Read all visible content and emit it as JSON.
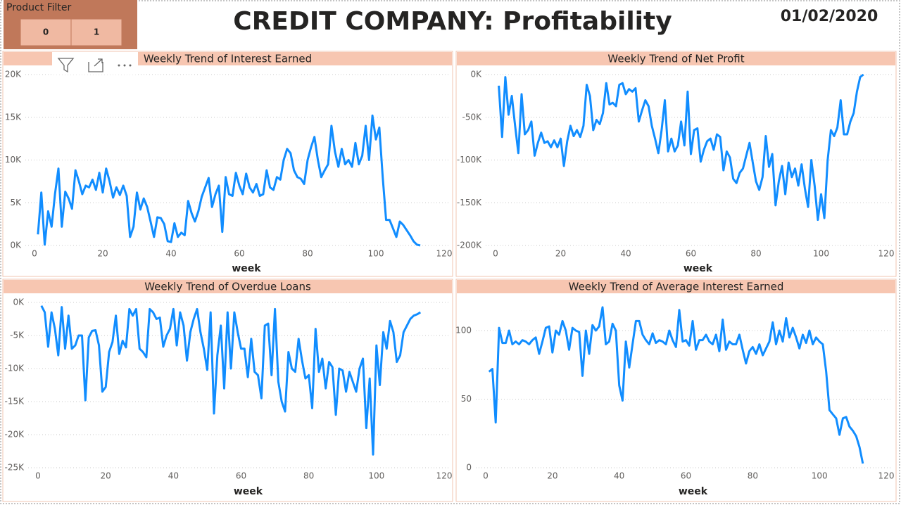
{
  "header": {
    "title": "CREDIT COMPANY: Profitability",
    "date": "01/02/2020"
  },
  "filter": {
    "label": "Product Filter",
    "options": [
      "0",
      "1"
    ]
  },
  "chart_data": [
    {
      "type": "line",
      "title": "Weekly Trend of Interest Earned",
      "xlabel": "week",
      "color": "#118dff",
      "grid": true,
      "xlim": [
        0,
        120
      ],
      "xticks": [
        0,
        20,
        40,
        60,
        80,
        100,
        120
      ],
      "ylim": [
        0,
        20000
      ],
      "yticks": [
        {
          "value": 0,
          "label": "0K"
        },
        {
          "value": 5000,
          "label": "5K"
        },
        {
          "value": 10000,
          "label": "10K"
        },
        {
          "value": 15000,
          "label": "15K"
        },
        {
          "value": 20000,
          "label": "20K"
        }
      ],
      "x": [
        1,
        2,
        3,
        4,
        5,
        6,
        7,
        8,
        9,
        10,
        11,
        12,
        13,
        14,
        15,
        16,
        17,
        18,
        19,
        20,
        21,
        22,
        23,
        24,
        25,
        26,
        27,
        28,
        29,
        30,
        31,
        32,
        33,
        34,
        35,
        36,
        37,
        38,
        39,
        40,
        41,
        42,
        43,
        44,
        45,
        46,
        47,
        48,
        49,
        50,
        51,
        52,
        53,
        54,
        55,
        56,
        57,
        58,
        59,
        60,
        61,
        62,
        63,
        64,
        65,
        66,
        67,
        68,
        69,
        70,
        71,
        72,
        73,
        74,
        75,
        76,
        77,
        78,
        79,
        80,
        81,
        82,
        83,
        84,
        85,
        86,
        87,
        88,
        89,
        90,
        91,
        92,
        93,
        94,
        95,
        96,
        97,
        98,
        99,
        100,
        101,
        102,
        103,
        104,
        105,
        106,
        107,
        108,
        109,
        110,
        111,
        112,
        113
      ],
      "values": [
        1300,
        6200,
        100,
        4000,
        2200,
        6000,
        9000,
        2200,
        6300,
        5500,
        4300,
        8800,
        7500,
        6000,
        7000,
        6800,
        7700,
        6500,
        8500,
        6200,
        9000,
        7500,
        5600,
        6800,
        5900,
        7000,
        5800,
        1000,
        2200,
        6200,
        4200,
        5500,
        4500,
        2800,
        1000,
        3300,
        3200,
        2500,
        500,
        400,
        2600,
        1000,
        1500,
        1200,
        5200,
        3800,
        2800,
        4000,
        5700,
        6800,
        7900,
        4500,
        6000,
        7000,
        1600,
        8000,
        6000,
        5800,
        8500,
        7000,
        6000,
        8400,
        6800,
        6200,
        7200,
        5800,
        6000,
        8800,
        6800,
        6500,
        8000,
        7700,
        10000,
        11300,
        10800,
        8800,
        8000,
        7800,
        7200,
        10000,
        11500,
        12700,
        10000,
        8000,
        8800,
        9500,
        14000,
        11000,
        9200,
        11300,
        9500,
        10000,
        9200,
        12000,
        9500,
        10500,
        14000,
        10000,
        15200,
        12400,
        13800,
        8000,
        3000,
        3000,
        2000,
        1000,
        2800,
        2400,
        1800,
        1200,
        500,
        100,
        0
      ]
    },
    {
      "type": "line",
      "title": "Weekly Trend of Net Profit",
      "xlabel": "week",
      "color": "#118dff",
      "grid": true,
      "xlim": [
        0,
        120
      ],
      "xticks": [
        0,
        20,
        40,
        60,
        80,
        100,
        120
      ],
      "ylim": [
        -200000,
        0
      ],
      "yticks": [
        {
          "value": -200000,
          "label": "-200K"
        },
        {
          "value": -150000,
          "label": "-150K"
        },
        {
          "value": -100000,
          "label": "-100K"
        },
        {
          "value": -50000,
          "label": "-50K"
        },
        {
          "value": 0,
          "label": "0K"
        }
      ],
      "x": [
        1,
        2,
        3,
        4,
        5,
        6,
        7,
        8,
        9,
        10,
        11,
        12,
        13,
        14,
        15,
        16,
        17,
        18,
        19,
        20,
        21,
        22,
        23,
        24,
        25,
        26,
        27,
        28,
        29,
        30,
        31,
        32,
        33,
        34,
        35,
        36,
        37,
        38,
        39,
        40,
        41,
        42,
        43,
        44,
        45,
        46,
        47,
        48,
        49,
        50,
        51,
        52,
        53,
        54,
        55,
        56,
        57,
        58,
        59,
        60,
        61,
        62,
        63,
        64,
        65,
        66,
        67,
        68,
        69,
        70,
        71,
        72,
        73,
        74,
        75,
        76,
        77,
        78,
        79,
        80,
        81,
        82,
        83,
        84,
        85,
        86,
        87,
        88,
        89,
        90,
        91,
        92,
        93,
        94,
        95,
        96,
        97,
        98,
        99,
        100,
        101,
        102,
        103,
        104,
        105,
        106,
        107,
        108,
        109,
        110,
        111,
        112,
        113
      ],
      "values": [
        -13000,
        -73000,
        -3000,
        -47000,
        -25000,
        -60000,
        -92000,
        -23000,
        -70000,
        -65000,
        -55000,
        -95000,
        -80000,
        -68000,
        -80000,
        -78000,
        -85000,
        -77000,
        -85000,
        -75000,
        -107000,
        -78000,
        -60000,
        -72000,
        -65000,
        -73000,
        -60000,
        -12000,
        -25000,
        -65000,
        -53000,
        -58000,
        -45000,
        -10000,
        -35000,
        -33000,
        -37000,
        -12000,
        -10000,
        -23000,
        -17000,
        -20000,
        -16000,
        -55000,
        -42000,
        -30000,
        -37000,
        -60000,
        -75000,
        -92000,
        -65000,
        -30000,
        -90000,
        -75000,
        -90000,
        -83000,
        -55000,
        -83000,
        -20000,
        -93000,
        -65000,
        -63000,
        -102000,
        -88000,
        -78000,
        -75000,
        -88000,
        -70000,
        -73000,
        -112000,
        -90000,
        -97000,
        -122000,
        -127000,
        -115000,
        -110000,
        -95000,
        -80000,
        -103000,
        -125000,
        -135000,
        -120000,
        -72000,
        -108000,
        -93000,
        -153000,
        -125000,
        -107000,
        -140000,
        -103000,
        -120000,
        -110000,
        -130000,
        -105000,
        -133000,
        -155000,
        -100000,
        -130000,
        -170000,
        -140000,
        -168000,
        -100000,
        -65000,
        -72000,
        -62000,
        -30000,
        -70000,
        -70000,
        -55000,
        -45000,
        -20000,
        -3000,
        0
      ]
    },
    {
      "type": "line",
      "title": "Weekly Trend of Overdue Loans",
      "xlabel": "week",
      "color": "#118dff",
      "grid": true,
      "xlim": [
        0,
        120
      ],
      "xticks": [
        0,
        20,
        40,
        60,
        80,
        100,
        120
      ],
      "ylim": [
        -25000,
        0
      ],
      "yticks": [
        {
          "value": -25000,
          "label": "-25K"
        },
        {
          "value": -20000,
          "label": "-20K"
        },
        {
          "value": -15000,
          "label": "-15K"
        },
        {
          "value": -10000,
          "label": "-10K"
        },
        {
          "value": -5000,
          "label": "-5K"
        },
        {
          "value": 0,
          "label": "0K"
        }
      ],
      "x": [
        1,
        2,
        3,
        4,
        5,
        6,
        7,
        8,
        9,
        10,
        11,
        12,
        13,
        14,
        15,
        16,
        17,
        18,
        19,
        20,
        21,
        22,
        23,
        24,
        25,
        26,
        27,
        28,
        29,
        30,
        31,
        32,
        33,
        34,
        35,
        36,
        37,
        38,
        39,
        40,
        41,
        42,
        43,
        44,
        45,
        46,
        47,
        48,
        49,
        50,
        51,
        52,
        53,
        54,
        55,
        56,
        57,
        58,
        59,
        60,
        61,
        62,
        63,
        64,
        65,
        66,
        67,
        68,
        69,
        70,
        71,
        72,
        73,
        74,
        75,
        76,
        77,
        78,
        79,
        80,
        81,
        82,
        83,
        84,
        85,
        86,
        87,
        88,
        89,
        90,
        91,
        92,
        93,
        94,
        95,
        96,
        97,
        98,
        99,
        100,
        101,
        102,
        103,
        104,
        105,
        106,
        107,
        108,
        109,
        110,
        111,
        112,
        113
      ],
      "values": [
        -500,
        -1500,
        -6700,
        -1500,
        -4000,
        -8000,
        -700,
        -7000,
        -2000,
        -7000,
        -6500,
        -5000,
        -5000,
        -14800,
        -5300,
        -4300,
        -4200,
        -6500,
        -13500,
        -12800,
        -7500,
        -6000,
        -2000,
        -7800,
        -5800,
        -6800,
        -1000,
        -2000,
        -1000,
        -7000,
        -7500,
        -8300,
        -1000,
        -1500,
        -2500,
        -2300,
        -6700,
        -5000,
        -4000,
        -1000,
        -6500,
        -1500,
        -3500,
        -8800,
        -4500,
        -2500,
        -1000,
        -4500,
        -7000,
        -10200,
        -1500,
        -16800,
        -8000,
        -3500,
        -13000,
        -1500,
        -10000,
        -1500,
        -4500,
        -7000,
        -7000,
        -11300,
        -5500,
        -10500,
        -11000,
        -14500,
        -3500,
        -3200,
        -11000,
        -1000,
        -12000,
        -15000,
        -16500,
        -7500,
        -10000,
        -10500,
        -5500,
        -8800,
        -11500,
        -11000,
        -16000,
        -4000,
        -10500,
        -8500,
        -13000,
        -9000,
        -9800,
        -17000,
        -10000,
        -10300,
        -13500,
        -10500,
        -12000,
        -13500,
        -10000,
        -8500,
        -19000,
        -11500,
        -23000,
        -6500,
        -12500,
        -4500,
        -7000,
        -2800,
        -4500,
        -9000,
        -8000,
        -4500,
        -3500,
        -2500,
        -2000,
        -1800,
        -1500
      ]
    },
    {
      "type": "line",
      "title": "Weekly Trend of Average Interest Earned",
      "xlabel": "week",
      "color": "#118dff",
      "grid": true,
      "xlim": [
        0,
        120
      ],
      "xticks": [
        0,
        20,
        40,
        60,
        80,
        100,
        120
      ],
      "ylim": [
        0,
        120
      ],
      "yticks": [
        0,
        50,
        100
      ],
      "x": [
        1,
        2,
        3,
        4,
        5,
        6,
        7,
        8,
        9,
        10,
        11,
        12,
        13,
        14,
        15,
        16,
        17,
        18,
        19,
        20,
        21,
        22,
        23,
        24,
        25,
        26,
        27,
        28,
        29,
        30,
        31,
        32,
        33,
        34,
        35,
        36,
        37,
        38,
        39,
        40,
        41,
        42,
        43,
        44,
        45,
        46,
        47,
        48,
        49,
        50,
        51,
        52,
        53,
        54,
        55,
        56,
        57,
        58,
        59,
        60,
        61,
        62,
        63,
        64,
        65,
        66,
        67,
        68,
        69,
        70,
        71,
        72,
        73,
        74,
        75,
        76,
        77,
        78,
        79,
        80,
        81,
        82,
        83,
        84,
        85,
        86,
        87,
        88,
        89,
        90,
        91,
        92,
        93,
        94,
        95,
        96,
        97,
        98,
        99,
        100,
        101,
        102,
        103,
        104,
        105,
        106,
        107,
        108,
        109,
        110,
        111,
        112,
        113
      ],
      "values": [
        70,
        72,
        33,
        102,
        91,
        91,
        100,
        90,
        92,
        90,
        93,
        92,
        90,
        93,
        95,
        83,
        92,
        102,
        103,
        84,
        100,
        97,
        107,
        100,
        86,
        102,
        100,
        99,
        67,
        100,
        83,
        104,
        100,
        103,
        117,
        90,
        92,
        105,
        100,
        60,
        49,
        92,
        73,
        90,
        107,
        107,
        97,
        93,
        90,
        98,
        91,
        93,
        92,
        90,
        100,
        93,
        88,
        115,
        92,
        93,
        89,
        107,
        86,
        93,
        93,
        97,
        92,
        90,
        97,
        85,
        108,
        86,
        92,
        90,
        90,
        97,
        86,
        76,
        85,
        88,
        83,
        90,
        82,
        87,
        92,
        106,
        90,
        100,
        92,
        109,
        95,
        102,
        95,
        87,
        97,
        91,
        100,
        90,
        95,
        92,
        90,
        70,
        42,
        39,
        36,
        24,
        36,
        37,
        30,
        27,
        23,
        15,
        3
      ]
    }
  ]
}
